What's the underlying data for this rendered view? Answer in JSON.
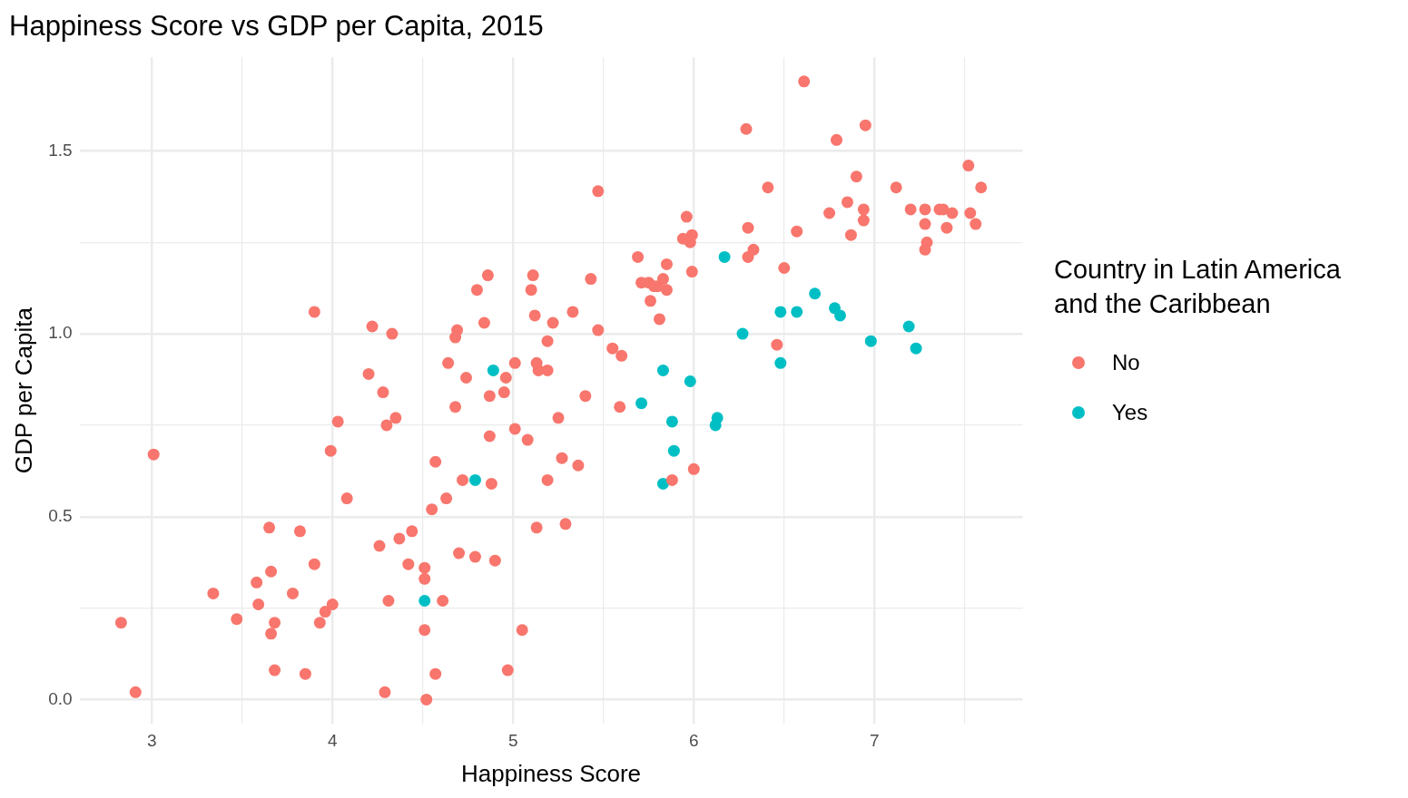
{
  "chart_data": {
    "type": "scatter",
    "title": "Happiness Score vs GDP per Capita, 2015",
    "xlabel": "Happiness Score",
    "ylabel": "GDP per Capita",
    "legend_title": "Country in Latin America and the Caribbean",
    "legend": "right",
    "grid": true,
    "marker": "circle",
    "xlim": [
      2.6,
      7.82
    ],
    "ylim": [
      -0.066,
      1.756
    ],
    "xticks": [
      3,
      {
        "value": 3.5,
        "label": null
      },
      4,
      {
        "value": 4.5,
        "label": null
      },
      5,
      {
        "value": 5.5,
        "label": null
      },
      6,
      {
        "value": 6.5,
        "label": null
      },
      7,
      {
        "value": 7.5,
        "label": null
      }
    ],
    "yticks": [
      {
        "value": 0,
        "label": "0.0"
      },
      {
        "value": 0.25,
        "label": null
      },
      {
        "value": 0.5,
        "label": "0.5"
      },
      {
        "value": 0.75,
        "label": null
      },
      {
        "value": 1,
        "label": "1.0"
      },
      {
        "value": 1.25,
        "label": null
      },
      {
        "value": 1.5,
        "label": "1.5"
      }
    ],
    "series": [
      {
        "name": "No",
        "color": "#f8766d",
        "x": [
          2.83,
          2.91,
          3.01,
          3.34,
          3.47,
          3.58,
          3.59,
          3.65,
          3.66,
          3.66,
          3.68,
          3.68,
          3.78,
          3.82,
          3.85,
          3.9,
          3.9,
          3.93,
          3.96,
          4.0,
          3.99,
          4.03,
          4.08,
          4.2,
          4.22,
          4.26,
          4.28,
          4.29,
          4.3,
          4.31,
          4.33,
          4.35,
          4.37,
          4.42,
          4.44,
          4.51,
          4.51,
          4.51,
          4.52,
          4.55,
          4.57,
          4.57,
          4.61,
          4.63,
          4.64,
          4.68,
          4.69,
          4.68,
          4.7,
          4.72,
          4.74,
          4.79,
          4.8,
          4.84,
          4.86,
          4.87,
          4.87,
          4.88,
          4.9,
          4.95,
          4.96,
          4.97,
          5.01,
          5.01,
          5.05,
          5.08,
          5.1,
          5.11,
          5.12,
          5.13,
          5.13,
          5.14,
          5.19,
          5.19,
          5.19,
          5.22,
          5.25,
          5.27,
          5.29,
          5.33,
          5.36,
          5.4,
          5.43,
          5.47,
          5.47,
          5.55,
          5.6,
          5.59,
          5.69,
          5.71,
          5.75,
          5.76,
          5.78,
          5.8,
          5.81,
          5.83,
          5.85,
          5.85,
          5.88,
          5.94,
          5.96,
          5.98,
          5.99,
          5.99,
          6.0,
          6.29,
          6.3,
          6.3,
          6.33,
          6.41,
          6.46,
          6.5,
          6.57,
          6.61,
          6.75,
          6.79,
          6.85,
          6.87,
          6.9,
          6.94,
          6.94,
          6.95,
          7.12,
          7.2,
          7.28,
          7.28,
          7.28,
          7.29,
          7.36,
          7.38,
          7.4,
          7.43,
          7.52,
          7.53,
          7.56,
          7.59
        ],
        "values": [
          0.21,
          0.02,
          0.67,
          0.29,
          0.22,
          0.32,
          0.26,
          0.47,
          0.18,
          0.35,
          0.21,
          0.08,
          0.29,
          0.46,
          0.07,
          1.06,
          0.37,
          0.21,
          0.24,
          0.26,
          0.68,
          0.76,
          0.55,
          0.89,
          1.02,
          0.42,
          0.84,
          0.02,
          0.75,
          0.27,
          1.0,
          0.77,
          0.44,
          0.37,
          0.46,
          0.36,
          0.33,
          0.19,
          0.0,
          0.52,
          0.65,
          0.07,
          0.27,
          0.55,
          0.92,
          0.99,
          1.01,
          0.8,
          0.4,
          0.6,
          0.88,
          0.39,
          1.12,
          1.03,
          1.16,
          0.72,
          0.83,
          0.59,
          0.38,
          0.84,
          0.88,
          0.08,
          0.92,
          0.74,
          0.19,
          0.71,
          1.12,
          1.16,
          1.05,
          0.47,
          0.92,
          0.9,
          0.9,
          0.98,
          0.6,
          1.03,
          0.77,
          0.66,
          0.48,
          1.06,
          0.64,
          0.83,
          1.15,
          1.39,
          1.01,
          0.96,
          0.94,
          0.8,
          1.21,
          1.14,
          1.14,
          1.09,
          1.13,
          1.13,
          1.04,
          1.15,
          1.19,
          1.12,
          0.6,
          1.26,
          1.32,
          1.25,
          1.27,
          1.17,
          0.63,
          1.56,
          1.29,
          1.21,
          1.23,
          1.4,
          0.97,
          1.18,
          1.28,
          1.69,
          1.33,
          1.53,
          1.36,
          1.27,
          1.43,
          1.34,
          1.31,
          1.57,
          1.4,
          1.34,
          1.3,
          1.34,
          1.23,
          1.25,
          1.34,
          1.34,
          1.29,
          1.33,
          1.46,
          1.33,
          1.3,
          1.4
        ]
      },
      {
        "name": "Yes",
        "color": "#00bfc4",
        "x": [
          4.51,
          4.79,
          4.89,
          5.71,
          5.83,
          5.83,
          5.88,
          5.89,
          5.98,
          6.13,
          6.12,
          6.17,
          6.27,
          6.48,
          6.48,
          6.57,
          6.67,
          6.78,
          6.81,
          6.98,
          7.19,
          7.23
        ],
        "values": [
          0.27,
          0.6,
          0.9,
          0.81,
          0.9,
          0.59,
          0.76,
          0.68,
          0.87,
          0.77,
          0.75,
          1.21,
          1.0,
          1.06,
          0.92,
          1.06,
          1.11,
          1.07,
          1.05,
          0.98,
          1.02,
          0.96
        ]
      }
    ]
  }
}
